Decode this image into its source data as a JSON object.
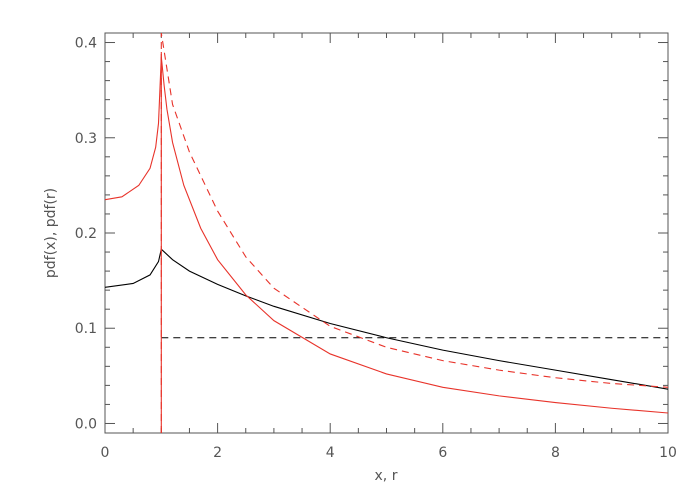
{
  "chart_data": {
    "type": "line",
    "title": "",
    "xlabel": "x, r",
    "ylabel": "pdf(x), pdf(r)",
    "xlim": [
      0,
      10
    ],
    "ylim": [
      -0.01,
      0.41
    ],
    "x_ticks": [
      0,
      2,
      4,
      6,
      8,
      10
    ],
    "x_tick_labels": [
      "0",
      "2",
      "4",
      "6",
      "8",
      "10"
    ],
    "y_ticks": [
      0.0,
      0.1,
      0.2,
      0.3,
      0.4
    ],
    "y_tick_labels": [
      "0.0",
      "0.1",
      "0.2",
      "0.3",
      "0.4"
    ],
    "grid": false,
    "legend": "none",
    "series": [
      {
        "color": "#000000",
        "dash": "solid",
        "x": [
          0,
          0.5,
          0.8,
          0.95,
          1.0,
          1.2,
          1.5,
          2.0,
          2.5,
          3.0,
          4.0,
          5.0,
          6.0,
          7.0,
          8.0,
          9.0,
          10.0
        ],
        "y": [
          0.143,
          0.147,
          0.156,
          0.17,
          0.183,
          0.172,
          0.16,
          0.146,
          0.134,
          0.123,
          0.105,
          0.09,
          0.077,
          0.066,
          0.056,
          0.046,
          0.036
        ]
      },
      {
        "color": "#000000",
        "dash": "dashed",
        "x": [
          1.0,
          10.0
        ],
        "y": [
          0.09,
          0.09
        ]
      },
      {
        "color": "#e8332a",
        "dash": "solid",
        "x": [
          0,
          0.3,
          0.6,
          0.8,
          0.9,
          0.95,
          1.0,
          1.05,
          1.1,
          1.2,
          1.4,
          1.7,
          2.0,
          2.5,
          3.0,
          4.0,
          5.0,
          6.0,
          7.0,
          8.0,
          9.0,
          10.0
        ],
        "y": [
          0.235,
          0.238,
          0.25,
          0.268,
          0.29,
          0.315,
          0.385,
          0.355,
          0.33,
          0.295,
          0.25,
          0.205,
          0.172,
          0.135,
          0.108,
          0.073,
          0.052,
          0.038,
          0.029,
          0.022,
          0.016,
          0.011
        ]
      },
      {
        "color": "#e8332a",
        "dash": "dashed",
        "x": [
          1.0,
          1.0,
          1.2,
          1.5,
          2.0,
          2.5,
          3.0,
          4.0,
          5.0,
          6.0,
          7.0,
          8.0,
          9.0,
          10.0
        ],
        "y": [
          -0.01,
          0.41,
          0.335,
          0.285,
          0.223,
          0.175,
          0.142,
          0.102,
          0.08,
          0.066,
          0.056,
          0.048,
          0.042,
          0.038
        ]
      },
      {
        "color": "#e8332a",
        "dash": "solid",
        "x": [
          1.0,
          1.0
        ],
        "y": [
          -0.01,
          0.39
        ]
      }
    ]
  }
}
